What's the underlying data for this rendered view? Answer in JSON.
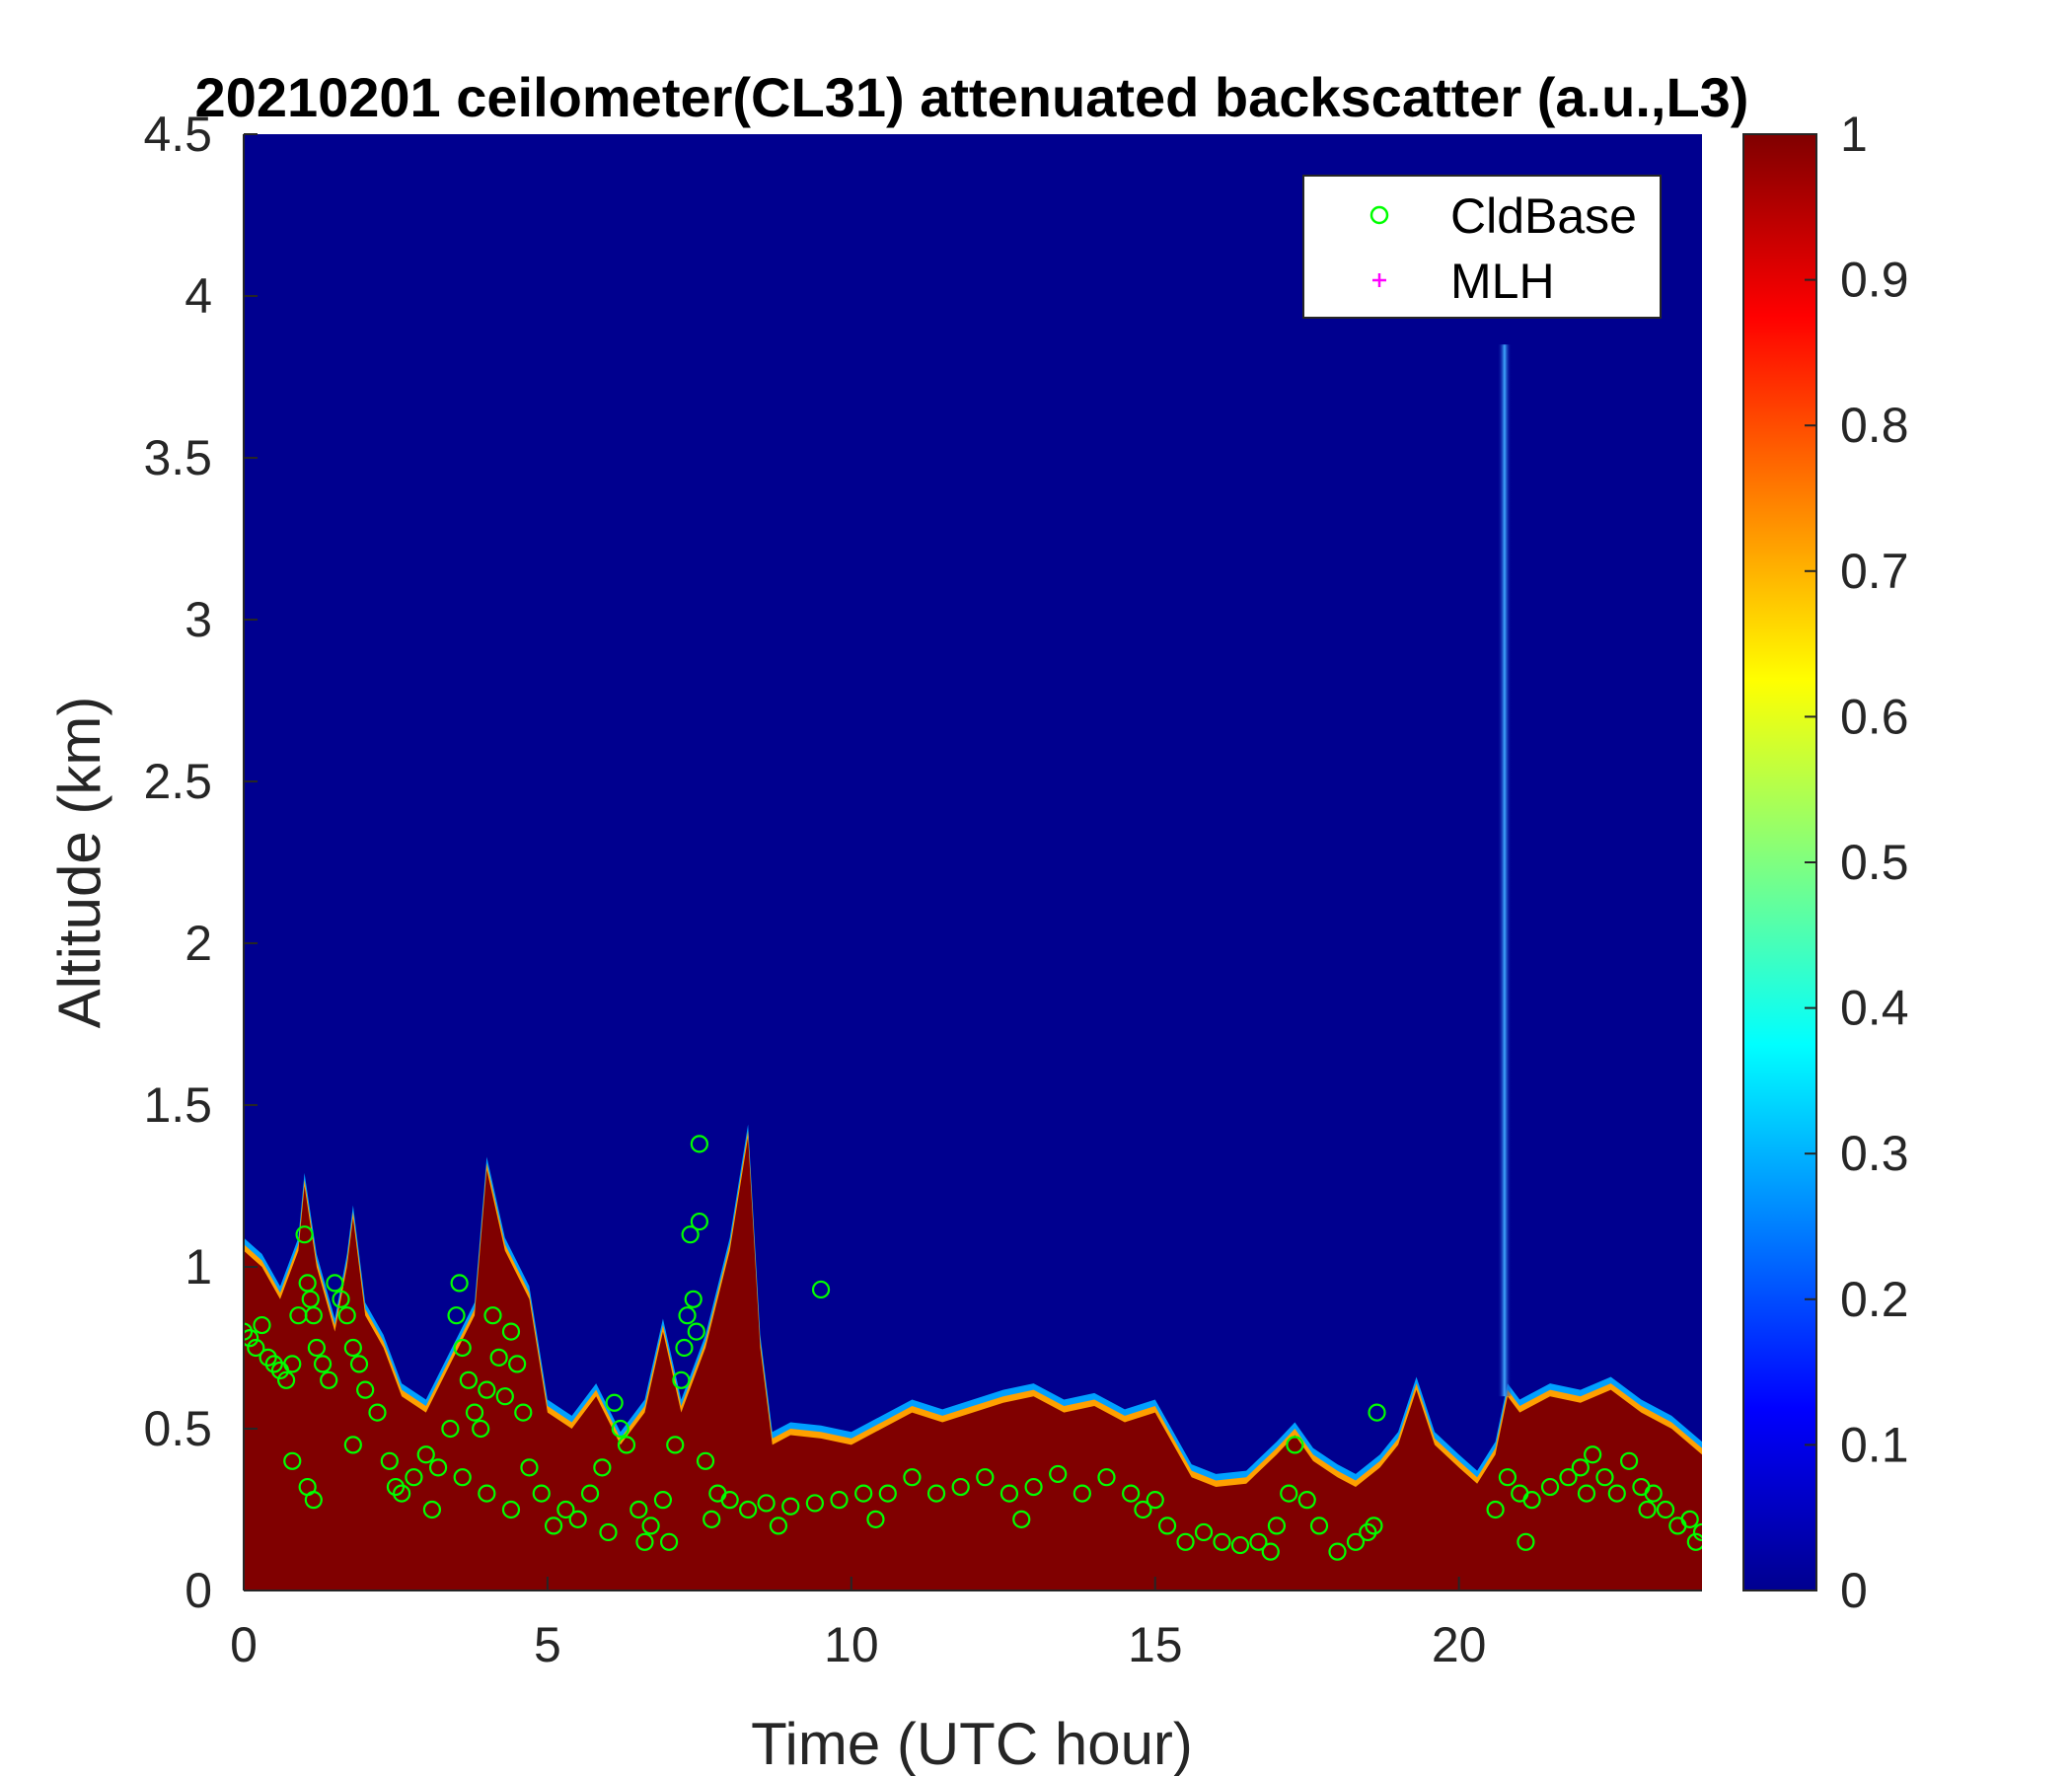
{
  "chart_data": {
    "type": "heatmap",
    "title": "20210201 ceilometer(CL31) attenuated backscatter (a.u.,L3)",
    "xlabel": "Time (UTC hour)",
    "ylabel": "Altitude (km)",
    "xlim": [
      0,
      24
    ],
    "ylim": [
      0,
      4.5
    ],
    "x_ticks": [
      "0",
      "5",
      "10",
      "15",
      "20"
    ],
    "y_ticks": [
      "0",
      "0.5",
      "1",
      "1.5",
      "2",
      "2.5",
      "3",
      "3.5",
      "4",
      "4.5"
    ],
    "colorbar": {
      "range": [
        0,
        1
      ],
      "ticks": [
        "0",
        "0.1",
        "0.2",
        "0.3",
        "0.4",
        "0.5",
        "0.6",
        "0.7",
        "0.8",
        "0.9",
        "1"
      ],
      "colormap": "jet"
    },
    "grid": false,
    "legend": {
      "placement": "top-right",
      "entries": [
        {
          "name": "CldBase",
          "marker": "circle",
          "color": "#00ff00"
        },
        {
          "name": "MLH",
          "marker": "plus",
          "color": "#ff00ff"
        }
      ]
    },
    "background_color": "#00008f",
    "high_color": "#800000",
    "aerosol_top_km": {
      "x": [
        0,
        0.3,
        0.6,
        0.9,
        1.0,
        1.2,
        1.5,
        1.7,
        1.8,
        2.0,
        2.3,
        2.6,
        3.0,
        3.4,
        3.8,
        4.0,
        4.3,
        4.7,
        5.0,
        5.4,
        5.8,
        6.2,
        6.6,
        6.9,
        7.2,
        7.6,
        8.0,
        8.3,
        8.5,
        8.7,
        9.0,
        9.5,
        10.0,
        10.5,
        11.0,
        11.5,
        12.0,
        12.5,
        13.0,
        13.5,
        14.0,
        14.5,
        15.0,
        15.3,
        15.6,
        16.0,
        16.5,
        17.0,
        17.3,
        17.6,
        18.0,
        18.3,
        18.7,
        19.0,
        19.3,
        19.6,
        20.0,
        20.3,
        20.6,
        20.8,
        21.0,
        21.5,
        22.0,
        22.5,
        23.0,
        23.5,
        24.0
      ],
      "y": [
        1.05,
        1.0,
        0.9,
        1.05,
        1.25,
        1.0,
        0.8,
        1.0,
        1.15,
        0.85,
        0.75,
        0.6,
        0.55,
        0.7,
        0.85,
        1.3,
        1.05,
        0.9,
        0.55,
        0.5,
        0.6,
        0.45,
        0.55,
        0.8,
        0.55,
        0.75,
        1.05,
        1.4,
        0.75,
        0.45,
        0.48,
        0.47,
        0.45,
        0.5,
        0.55,
        0.52,
        0.55,
        0.58,
        0.6,
        0.55,
        0.57,
        0.52,
        0.55,
        0.45,
        0.35,
        0.32,
        0.33,
        0.42,
        0.48,
        0.4,
        0.35,
        0.32,
        0.38,
        0.45,
        0.62,
        0.45,
        0.38,
        0.33,
        0.42,
        0.6,
        0.55,
        0.6,
        0.58,
        0.62,
        0.55,
        0.5,
        0.42
      ]
    },
    "plume": {
      "x": 20.75,
      "y_min": 0.6,
      "y_max": 3.85
    },
    "cldbase": {
      "x": [
        0.0,
        0.1,
        0.2,
        0.3,
        0.4,
        0.5,
        0.6,
        0.7,
        0.8,
        0.9,
        1.0,
        1.05,
        1.1,
        1.15,
        1.2,
        1.3,
        1.4,
        1.5,
        1.6,
        1.7,
        1.8,
        1.9,
        2.0,
        2.2,
        2.4,
        2.6,
        2.8,
        3.0,
        3.2,
        3.4,
        3.5,
        3.55,
        3.6,
        3.7,
        3.8,
        3.9,
        4.0,
        4.1,
        4.2,
        4.3,
        4.4,
        4.5,
        4.6,
        4.7,
        4.9,
        5.1,
        5.3,
        5.5,
        5.7,
        5.9,
        6.1,
        6.2,
        6.3,
        6.5,
        6.7,
        6.9,
        7.1,
        7.2,
        7.25,
        7.3,
        7.35,
        7.4,
        7.45,
        7.5,
        7.6,
        7.8,
        8.0,
        8.3,
        8.6,
        9.0,
        9.4,
        9.5,
        9.8,
        10.2,
        10.6,
        11.0,
        11.4,
        11.8,
        12.2,
        12.6,
        13.0,
        13.4,
        13.8,
        14.2,
        14.6,
        15.0,
        15.2,
        15.5,
        15.8,
        16.1,
        16.4,
        16.7,
        17.0,
        17.2,
        17.3,
        17.5,
        17.7,
        18.0,
        18.3,
        18.6,
        18.65,
        20.6,
        20.8,
        21.0,
        21.2,
        21.5,
        21.8,
        22.0,
        22.2,
        22.4,
        22.6,
        22.8,
        23.0,
        23.2,
        23.4,
        23.6,
        23.8,
        24.0,
        0.8,
        1.05,
        1.15,
        1.8,
        2.5,
        3.1,
        3.6,
        4.0,
        4.4,
        6.0,
        6.6,
        7.0,
        7.7,
        8.8,
        10.4,
        12.8,
        14.8,
        16.9,
        18.5,
        21.1,
        22.1,
        23.1,
        23.9
      ],
      "y": [
        0.8,
        0.78,
        0.75,
        0.82,
        0.72,
        0.7,
        0.68,
        0.65,
        0.7,
        0.85,
        1.1,
        0.95,
        0.9,
        0.85,
        0.75,
        0.7,
        0.65,
        0.95,
        0.9,
        0.85,
        0.75,
        0.7,
        0.62,
        0.55,
        0.4,
        0.3,
        0.35,
        0.42,
        0.38,
        0.5,
        0.85,
        0.95,
        0.75,
        0.65,
        0.55,
        0.5,
        0.62,
        0.85,
        0.72,
        0.6,
        0.8,
        0.7,
        0.55,
        0.38,
        0.3,
        0.2,
        0.25,
        0.22,
        0.3,
        0.38,
        0.58,
        0.5,
        0.45,
        0.25,
        0.2,
        0.28,
        0.45,
        0.65,
        0.75,
        0.85,
        1.1,
        0.9,
        0.8,
        1.14,
        0.4,
        0.3,
        0.28,
        0.25,
        0.27,
        0.26,
        0.27,
        0.93,
        0.28,
        0.3,
        0.3,
        0.35,
        0.3,
        0.32,
        0.35,
        0.3,
        0.32,
        0.36,
        0.3,
        0.35,
        0.3,
        0.28,
        0.2,
        0.15,
        0.18,
        0.15,
        0.14,
        0.15,
        0.2,
        0.3,
        0.45,
        0.28,
        0.2,
        0.12,
        0.15,
        0.2,
        0.55,
        0.25,
        0.35,
        0.3,
        0.28,
        0.32,
        0.35,
        0.38,
        0.42,
        0.35,
        0.3,
        0.4,
        0.32,
        0.3,
        0.25,
        0.2,
        0.22,
        0.18,
        0.4,
        0.32,
        0.28,
        0.45,
        0.32,
        0.25,
        0.35,
        0.3,
        0.25,
        0.18,
        0.15,
        0.15,
        0.22,
        0.2,
        0.22,
        0.22,
        0.25,
        0.12,
        0.18,
        0.15,
        0.3,
        0.25,
        0.15
      ]
    },
    "cldbase_outliers": {
      "x": [
        7.5
      ],
      "y": [
        1.38
      ]
    }
  }
}
